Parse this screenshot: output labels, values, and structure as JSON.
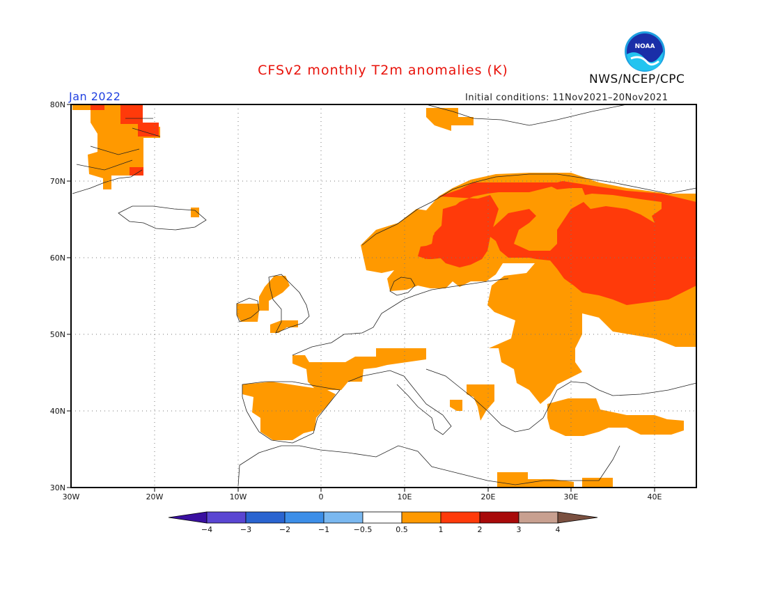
{
  "header": {
    "title": "CFSv2 monthly T2m anomalies (K)",
    "agency": "NWS/NCEP/CPC",
    "logo_text": "NOAA",
    "month": "Jan 2022",
    "initial_conditions": "Initial conditions: 11Nov2021–20Nov2021"
  },
  "map": {
    "lon_range": [
      -30,
      45
    ],
    "lat_range": [
      30,
      80
    ],
    "lat_labels": [
      "30N",
      "40N",
      "50N",
      "60N",
      "70N",
      "80N"
    ],
    "lon_labels": [
      "30W",
      "20W",
      "10W",
      "0",
      "10E",
      "20E",
      "30E",
      "40E"
    ],
    "gridlines": "dotted"
  },
  "legend": {
    "tick_labels": [
      "−4",
      "−3",
      "−2",
      "−1",
      "−0.5",
      "0.5",
      "1",
      "2",
      "3",
      "4"
    ],
    "colors": [
      "#3a10a0",
      "#5a46d2",
      "#2a64d0",
      "#3c8ee8",
      "#7ab8f0",
      "#ffffff",
      "#ff9900",
      "#ff3a0a",
      "#a80a0a",
      "#c8a090",
      "#7a5040"
    ]
  },
  "anomaly_regions": [
    {
      "name": "scandinavia-russia-warm",
      "level": "1 to 2 K",
      "color": "#ff3a0a"
    },
    {
      "name": "greenland-warm",
      "level": "1 to 2 K",
      "color": "#ff3a0a"
    },
    {
      "name": "eastern-europe-warm",
      "level": "0.5 to 1 K",
      "color": "#ff9900"
    },
    {
      "name": "iberia-warm",
      "level": "0.5 to 1 K",
      "color": "#ff9900"
    },
    {
      "name": "turkey-warm",
      "level": "0.5 to 1 K",
      "color": "#ff9900"
    }
  ]
}
